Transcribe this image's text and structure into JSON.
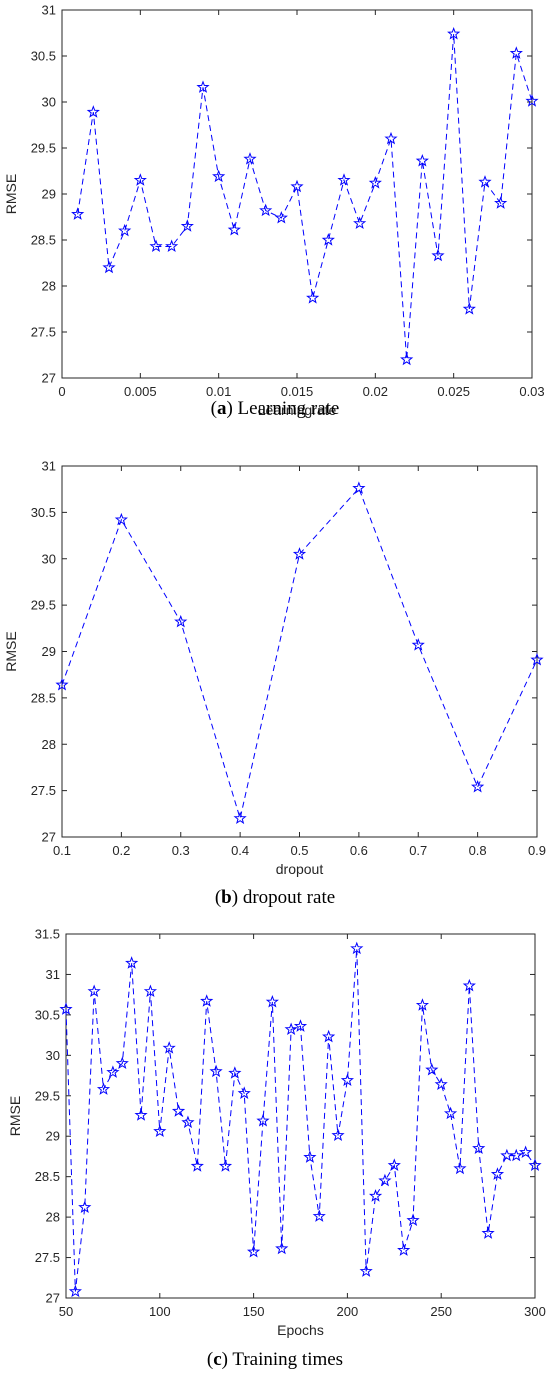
{
  "figures": [
    {
      "caption_letter": "a",
      "caption_text": "Learning rate",
      "chart_data": {
        "type": "line",
        "xlabel": "Learningrate",
        "ylabel": "RMSE",
        "xlim": [
          0,
          0.03
        ],
        "ylim": [
          27,
          31
        ],
        "xticks": [
          "0",
          "0.005",
          "0.01",
          "0.015",
          "0.02",
          "0.025",
          "0.03"
        ],
        "yticks": [
          "27",
          "27.5",
          "28",
          "28.5",
          "29",
          "29.5",
          "30",
          "30.5",
          "31"
        ],
        "x": [
          0.001,
          0.002,
          0.003,
          0.004,
          0.005,
          0.006,
          0.007,
          0.008,
          0.009,
          0.01,
          0.011,
          0.012,
          0.013,
          0.014,
          0.015,
          0.016,
          0.017,
          0.018,
          0.019,
          0.02,
          0.021,
          0.022,
          0.023,
          0.024,
          0.025,
          0.026,
          0.027,
          0.028,
          0.029,
          0.03
        ],
        "y": [
          28.78,
          29.89,
          28.2,
          28.6,
          29.15,
          28.43,
          28.43,
          28.65,
          30.16,
          29.19,
          28.61,
          29.38,
          28.82,
          28.74,
          29.08,
          27.87,
          28.5,
          29.15,
          28.68,
          29.12,
          29.6,
          27.2,
          29.36,
          28.33,
          30.74,
          27.75,
          29.13,
          28.9,
          30.53,
          30.01
        ],
        "grid": false,
        "marker": "star",
        "line_style": "dashed",
        "color": "#0000ff"
      }
    },
    {
      "caption_letter": "b",
      "caption_text": "dropout rate",
      "chart_data": {
        "type": "line",
        "xlabel": "dropout",
        "ylabel": "RMSE",
        "xlim": [
          0.1,
          0.9
        ],
        "ylim": [
          27,
          31
        ],
        "xticks": [
          "0.1",
          "0.2",
          "0.3",
          "0.4",
          "0.5",
          "0.6",
          "0.7",
          "0.8",
          "0.9"
        ],
        "yticks": [
          "27",
          "27.5",
          "28",
          "28.5",
          "29",
          "29.5",
          "30",
          "30.5",
          "31"
        ],
        "x": [
          0.1,
          0.2,
          0.3,
          0.4,
          0.5,
          0.6,
          0.7,
          0.8,
          0.9
        ],
        "y": [
          28.64,
          30.42,
          29.32,
          27.2,
          30.05,
          30.76,
          29.07,
          27.54,
          28.91
        ],
        "grid": false,
        "marker": "star",
        "line_style": "dashed",
        "color": "#0000ff"
      }
    },
    {
      "caption_letter": "c",
      "caption_text": "Training times",
      "chart_data": {
        "type": "line",
        "xlabel": "Epochs",
        "ylabel": "RMSE",
        "xlim": [
          50,
          300
        ],
        "ylim": [
          27,
          31.5
        ],
        "xticks": [
          "50",
          "100",
          "150",
          "200",
          "250",
          "300"
        ],
        "yticks": [
          "27",
          "27.5",
          "28",
          "28.5",
          "29",
          "29.5",
          "30",
          "30.5",
          "31",
          "31.5"
        ],
        "x": [
          50,
          55,
          60,
          65,
          70,
          75,
          80,
          85,
          90,
          95,
          100,
          105,
          110,
          115,
          120,
          125,
          130,
          135,
          140,
          145,
          150,
          155,
          160,
          165,
          170,
          175,
          180,
          185,
          190,
          195,
          200,
          205,
          210,
          215,
          220,
          225,
          230,
          235,
          240,
          245,
          250,
          255,
          260,
          265,
          270,
          275,
          280,
          285,
          290,
          295,
          300
        ],
        "y": [
          30.57,
          27.08,
          28.12,
          30.79,
          29.58,
          29.79,
          29.9,
          31.14,
          29.26,
          30.79,
          29.06,
          30.09,
          29.31,
          29.17,
          28.63,
          30.67,
          29.8,
          28.63,
          29.78,
          29.53,
          27.57,
          29.19,
          30.66,
          27.61,
          30.32,
          30.36,
          28.74,
          28.01,
          30.23,
          29.01,
          29.69,
          31.32,
          27.33,
          28.26,
          28.45,
          28.64,
          27.59,
          27.96,
          30.62,
          29.82,
          29.64,
          29.28,
          28.6,
          30.86,
          28.85,
          27.8,
          28.53,
          28.76,
          28.76,
          28.8,
          28.64
        ],
        "grid": false,
        "marker": "star",
        "line_style": "dashed",
        "color": "#0000ff"
      }
    }
  ]
}
